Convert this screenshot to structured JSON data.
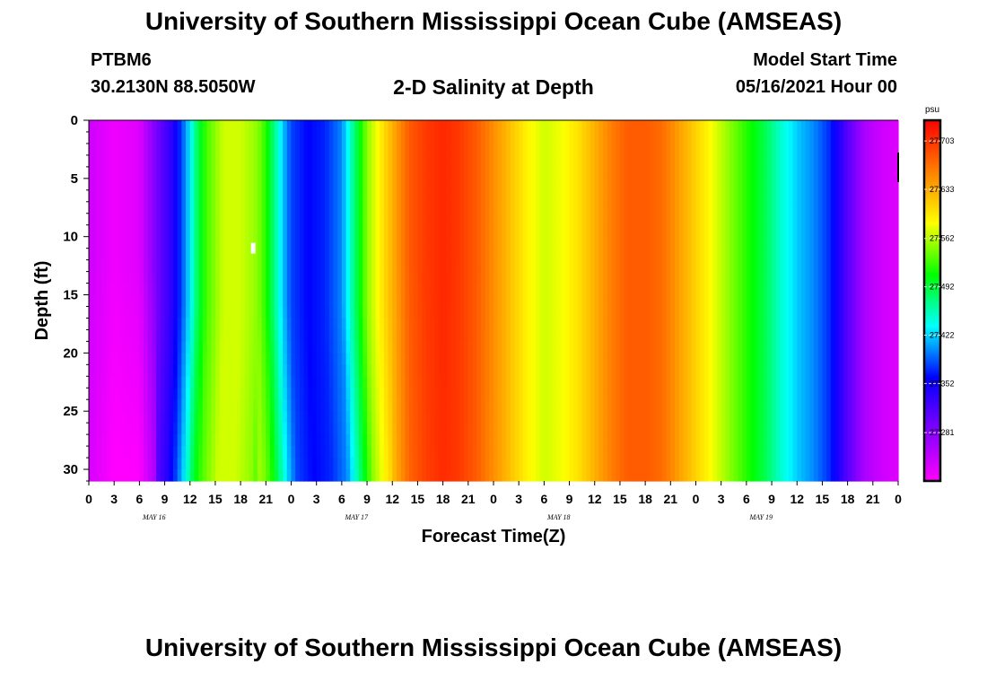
{
  "header": {
    "title": "University of Southern Mississippi Ocean Cube (AMSEAS)",
    "station": "PTBM6",
    "coords": "30.2130N  88.5050W",
    "subtitle": "2-D Salinity at Depth",
    "model_start_label": "Model Start Time",
    "model_start_value": "05/16/2021 Hour 00"
  },
  "footer": {
    "title": "University of Southern Mississippi Ocean Cube (AMSEAS)"
  },
  "chart_data": {
    "type": "heatmap",
    "title": "2-D Salinity at Depth",
    "xlabel": "Forecast Time(Z)",
    "ylabel": "Depth (ft)",
    "x_tick_labels": [
      "0",
      "3",
      "6",
      "9",
      "12",
      "15",
      "18",
      "21",
      "0",
      "3",
      "6",
      "9",
      "12",
      "15",
      "18",
      "21",
      "0",
      "3",
      "6",
      "9",
      "12",
      "15",
      "18",
      "21",
      "0",
      "3",
      "6",
      "9",
      "12",
      "15",
      "18",
      "21",
      "0"
    ],
    "day_labels": [
      "MAY 16",
      "MAY 17",
      "MAY 18",
      "MAY 19"
    ],
    "x_range_hours": [
      0,
      96
    ],
    "y_ticks": [
      0,
      5,
      10,
      15,
      20,
      25,
      30
    ],
    "y_range": [
      0,
      31
    ],
    "y_inverted": true,
    "colorbar": {
      "unit": "psu",
      "min": 27.211,
      "max": 27.733,
      "ticks": [
        27.281,
        27.352,
        27.422,
        27.492,
        27.562,
        27.633,
        27.703
      ],
      "colors": [
        "#ff00ff",
        "#8000ff",
        "#0000ff",
        "#00ffff",
        "#00ff00",
        "#ffff00",
        "#ff8000",
        "#ff0000"
      ]
    },
    "surface_profile": {
      "hours": [
        0,
        3,
        6,
        8,
        10,
        11,
        12,
        13,
        14,
        16,
        18,
        20,
        21,
        22,
        23,
        24,
        26,
        28,
        30,
        31,
        33,
        36,
        38,
        40,
        42,
        44,
        46,
        48,
        50,
        52,
        54,
        56,
        58,
        60,
        62,
        64,
        66,
        68,
        70,
        72,
        74,
        76,
        78,
        80,
        82,
        84,
        86,
        88,
        90,
        92,
        94,
        96
      ],
      "values": [
        27.24,
        27.22,
        27.23,
        27.29,
        27.34,
        27.38,
        27.43,
        27.49,
        27.53,
        27.57,
        27.57,
        27.55,
        27.52,
        27.47,
        27.42,
        27.38,
        27.36,
        27.37,
        27.4,
        27.45,
        27.55,
        27.63,
        27.68,
        27.7,
        27.71,
        27.7,
        27.68,
        27.65,
        27.62,
        27.59,
        27.57,
        27.58,
        27.6,
        27.63,
        27.66,
        27.68,
        27.68,
        27.67,
        27.64,
        27.61,
        27.58,
        27.55,
        27.52,
        27.49,
        27.45,
        27.42,
        27.4,
        27.37,
        27.31,
        27.26,
        27.24,
        27.23
      ]
    },
    "peak_marker": {
      "hour": 19.5,
      "depth_ft": 11
    }
  }
}
